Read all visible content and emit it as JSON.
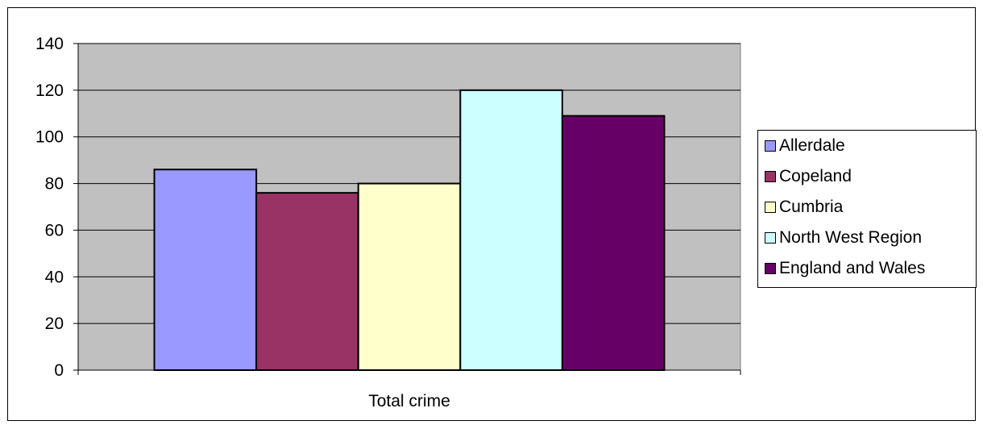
{
  "chart_data": {
    "type": "bar",
    "categories": [
      "Total crime"
    ],
    "series": [
      {
        "name": "Allerdale",
        "values": [
          86
        ],
        "color": "#9999FF"
      },
      {
        "name": "Copeland",
        "values": [
          76
        ],
        "color": "#993366"
      },
      {
        "name": "Cumbria",
        "values": [
          80
        ],
        "color": "#FFFFCC"
      },
      {
        "name": "North West Region",
        "values": [
          120
        ],
        "color": "#CCFFFF"
      },
      {
        "name": "England and Wales",
        "values": [
          109
        ],
        "color": "#660066"
      }
    ],
    "ylim": [
      0,
      140
    ],
    "yticks": [
      0,
      20,
      40,
      60,
      80,
      100,
      120,
      140
    ],
    "grid": true,
    "plot_background": "#C0C0C0",
    "legend_position": "right"
  }
}
